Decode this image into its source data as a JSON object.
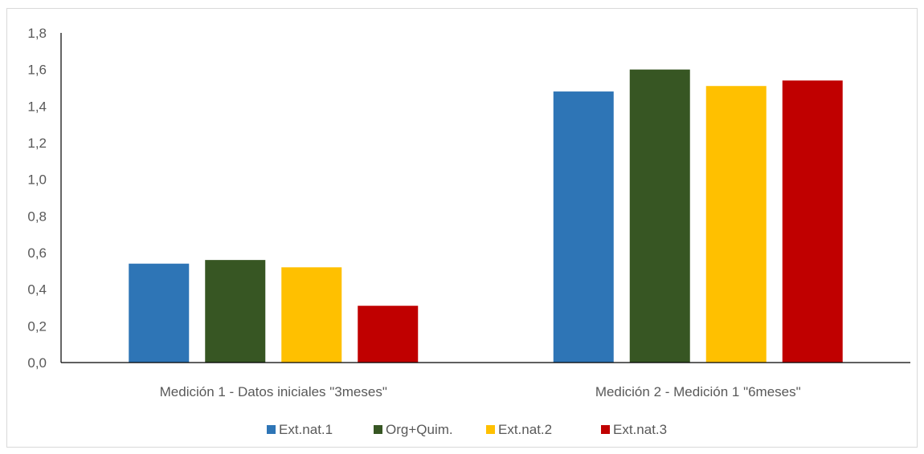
{
  "chart_data": {
    "type": "bar",
    "title": "",
    "xlabel": "",
    "ylabel": "",
    "ylim": [
      0,
      1.8
    ],
    "ytick_step": 0.2,
    "ytick_labels": [
      "0,0",
      "0,2",
      "0,4",
      "0,6",
      "0,8",
      "1,0",
      "1,2",
      "1,4",
      "1,6",
      "1,8"
    ],
    "grid": false,
    "legend_position": "bottom",
    "categories": [
      "Medición 1 - Datos iniciales \"3meses\"",
      "Medición 2 - Medición 1 \"6meses\""
    ],
    "series": [
      {
        "name": "Ext.nat.1",
        "color": "#2e75b6",
        "values": [
          0.54,
          1.48
        ]
      },
      {
        "name": "Org+Quim.",
        "color": "#375623",
        "values": [
          0.56,
          1.6
        ]
      },
      {
        "name": "Ext.nat.2",
        "color": "#ffc000",
        "values": [
          0.52,
          1.51
        ]
      },
      {
        "name": "Ext.nat.3",
        "color": "#c00000",
        "values": [
          0.31,
          1.54
        ]
      }
    ]
  }
}
